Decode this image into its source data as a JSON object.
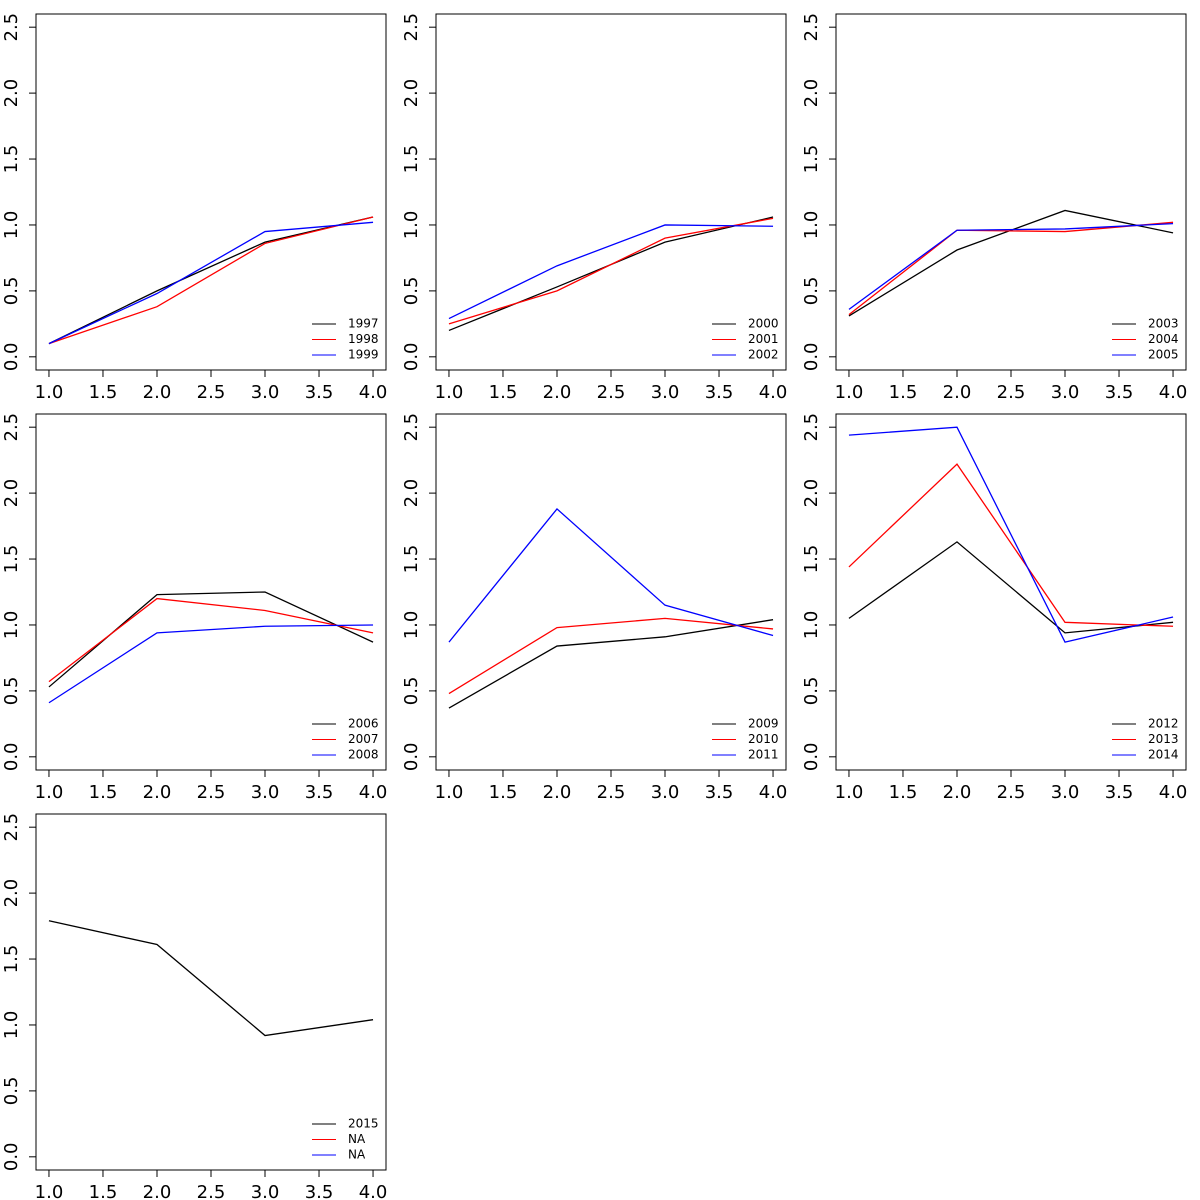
{
  "chart_data": [
    {
      "type": "line",
      "x": [
        1,
        2,
        3,
        4
      ],
      "xlim": [
        0.88,
        4.12
      ],
      "ylim": [
        -0.1,
        2.6
      ],
      "legend": "bottomright",
      "xticks": [
        {
          "value": 1,
          "label": "1.0"
        },
        {
          "value": 1.5,
          "label": "1.5"
        },
        {
          "value": 2,
          "label": "2.0"
        },
        {
          "value": 2.5,
          "label": "2.5"
        },
        {
          "value": 3,
          "label": "3.0"
        },
        {
          "value": 3.5,
          "label": "3.5"
        },
        {
          "value": 4,
          "label": "4.0"
        }
      ],
      "yticks": [
        {
          "value": 0,
          "label": "0.0"
        },
        {
          "value": 0.5,
          "label": "0.5"
        },
        {
          "value": 1,
          "label": "1.0"
        },
        {
          "value": 1.5,
          "label": "1.5"
        },
        {
          "value": 2,
          "label": "2.0"
        },
        {
          "value": 2.5,
          "label": "2.5"
        }
      ],
      "series": [
        {
          "name": "1997",
          "color": "#000000",
          "values": [
            0.1,
            0.5,
            0.87,
            1.06
          ]
        },
        {
          "name": "1998",
          "color": "#ff0000",
          "values": [
            0.1,
            0.38,
            0.86,
            1.06
          ]
        },
        {
          "name": "1999",
          "color": "#0000ff",
          "values": [
            0.1,
            0.48,
            0.95,
            1.02
          ]
        }
      ]
    },
    {
      "type": "line",
      "x": [
        1,
        2,
        3,
        4
      ],
      "xlim": [
        0.88,
        4.12
      ],
      "ylim": [
        -0.1,
        2.6
      ],
      "legend": "bottomright",
      "xticks": [
        {
          "value": 1,
          "label": "1.0"
        },
        {
          "value": 1.5,
          "label": "1.5"
        },
        {
          "value": 2,
          "label": "2.0"
        },
        {
          "value": 2.5,
          "label": "2.5"
        },
        {
          "value": 3,
          "label": "3.0"
        },
        {
          "value": 3.5,
          "label": "3.5"
        },
        {
          "value": 4,
          "label": "4.0"
        }
      ],
      "yticks": [
        {
          "value": 0,
          "label": "0.0"
        },
        {
          "value": 0.5,
          "label": "0.5"
        },
        {
          "value": 1,
          "label": "1.0"
        },
        {
          "value": 1.5,
          "label": "1.5"
        },
        {
          "value": 2,
          "label": "2.0"
        },
        {
          "value": 2.5,
          "label": "2.5"
        }
      ],
      "series": [
        {
          "name": "2000",
          "color": "#000000",
          "values": [
            0.2,
            0.53,
            0.87,
            1.06
          ]
        },
        {
          "name": "2001",
          "color": "#ff0000",
          "values": [
            0.25,
            0.5,
            0.9,
            1.05
          ]
        },
        {
          "name": "2002",
          "color": "#0000ff",
          "values": [
            0.29,
            0.69,
            1.0,
            0.99
          ]
        }
      ]
    },
    {
      "type": "line",
      "x": [
        1,
        2,
        3,
        4
      ],
      "xlim": [
        0.88,
        4.12
      ],
      "ylim": [
        -0.1,
        2.6
      ],
      "legend": "bottomright",
      "xticks": [
        {
          "value": 1,
          "label": "1.0"
        },
        {
          "value": 1.5,
          "label": "1.5"
        },
        {
          "value": 2,
          "label": "2.0"
        },
        {
          "value": 2.5,
          "label": "2.5"
        },
        {
          "value": 3,
          "label": "3.0"
        },
        {
          "value": 3.5,
          "label": "3.5"
        },
        {
          "value": 4,
          "label": "4.0"
        }
      ],
      "yticks": [
        {
          "value": 0,
          "label": "0.0"
        },
        {
          "value": 0.5,
          "label": "0.5"
        },
        {
          "value": 1,
          "label": "1.0"
        },
        {
          "value": 1.5,
          "label": "1.5"
        },
        {
          "value": 2,
          "label": "2.0"
        },
        {
          "value": 2.5,
          "label": "2.5"
        }
      ],
      "series": [
        {
          "name": "2003",
          "color": "#000000",
          "values": [
            0.31,
            0.81,
            1.11,
            0.94
          ]
        },
        {
          "name": "2004",
          "color": "#ff0000",
          "values": [
            0.32,
            0.96,
            0.95,
            1.02
          ]
        },
        {
          "name": "2005",
          "color": "#0000ff",
          "values": [
            0.36,
            0.96,
            0.97,
            1.01
          ]
        }
      ]
    },
    {
      "type": "line",
      "x": [
        1,
        2,
        3,
        4
      ],
      "xlim": [
        0.88,
        4.12
      ],
      "ylim": [
        -0.1,
        2.6
      ],
      "legend": "bottomright",
      "xticks": [
        {
          "value": 1,
          "label": "1.0"
        },
        {
          "value": 1.5,
          "label": "1.5"
        },
        {
          "value": 2,
          "label": "2.0"
        },
        {
          "value": 2.5,
          "label": "2.5"
        },
        {
          "value": 3,
          "label": "3.0"
        },
        {
          "value": 3.5,
          "label": "3.5"
        },
        {
          "value": 4,
          "label": "4.0"
        }
      ],
      "yticks": [
        {
          "value": 0,
          "label": "0.0"
        },
        {
          "value": 0.5,
          "label": "0.5"
        },
        {
          "value": 1,
          "label": "1.0"
        },
        {
          "value": 1.5,
          "label": "1.5"
        },
        {
          "value": 2,
          "label": "2.0"
        },
        {
          "value": 2.5,
          "label": "2.5"
        }
      ],
      "series": [
        {
          "name": "2006",
          "color": "#000000",
          "values": [
            0.53,
            1.23,
            1.25,
            0.87
          ]
        },
        {
          "name": "2007",
          "color": "#ff0000",
          "values": [
            0.57,
            1.2,
            1.11,
            0.94
          ]
        },
        {
          "name": "2008",
          "color": "#0000ff",
          "values": [
            0.41,
            0.94,
            0.99,
            1.0
          ]
        }
      ]
    },
    {
      "type": "line",
      "x": [
        1,
        2,
        3,
        4
      ],
      "xlim": [
        0.88,
        4.12
      ],
      "ylim": [
        -0.1,
        2.6
      ],
      "legend": "bottomright",
      "xticks": [
        {
          "value": 1,
          "label": "1.0"
        },
        {
          "value": 1.5,
          "label": "1.5"
        },
        {
          "value": 2,
          "label": "2.0"
        },
        {
          "value": 2.5,
          "label": "2.5"
        },
        {
          "value": 3,
          "label": "3.0"
        },
        {
          "value": 3.5,
          "label": "3.5"
        },
        {
          "value": 4,
          "label": "4.0"
        }
      ],
      "yticks": [
        {
          "value": 0,
          "label": "0.0"
        },
        {
          "value": 0.5,
          "label": "0.5"
        },
        {
          "value": 1,
          "label": "1.0"
        },
        {
          "value": 1.5,
          "label": "1.5"
        },
        {
          "value": 2,
          "label": "2.0"
        },
        {
          "value": 2.5,
          "label": "2.5"
        }
      ],
      "series": [
        {
          "name": "2009",
          "color": "#000000",
          "values": [
            0.37,
            0.84,
            0.91,
            1.04
          ]
        },
        {
          "name": "2010",
          "color": "#ff0000",
          "values": [
            0.48,
            0.98,
            1.05,
            0.97
          ]
        },
        {
          "name": "2011",
          "color": "#0000ff",
          "values": [
            0.87,
            1.88,
            1.15,
            0.92
          ]
        }
      ]
    },
    {
      "type": "line",
      "x": [
        1,
        2,
        3,
        4
      ],
      "xlim": [
        0.88,
        4.12
      ],
      "ylim": [
        -0.1,
        2.6
      ],
      "legend": "bottomright",
      "xticks": [
        {
          "value": 1,
          "label": "1.0"
        },
        {
          "value": 1.5,
          "label": "1.5"
        },
        {
          "value": 2,
          "label": "2.0"
        },
        {
          "value": 2.5,
          "label": "2.5"
        },
        {
          "value": 3,
          "label": "3.0"
        },
        {
          "value": 3.5,
          "label": "3.5"
        },
        {
          "value": 4,
          "label": "4.0"
        }
      ],
      "yticks": [
        {
          "value": 0,
          "label": "0.0"
        },
        {
          "value": 0.5,
          "label": "0.5"
        },
        {
          "value": 1,
          "label": "1.0"
        },
        {
          "value": 1.5,
          "label": "1.5"
        },
        {
          "value": 2,
          "label": "2.0"
        },
        {
          "value": 2.5,
          "label": "2.5"
        }
      ],
      "series": [
        {
          "name": "2012",
          "color": "#000000",
          "values": [
            1.05,
            1.63,
            0.94,
            1.02
          ]
        },
        {
          "name": "2013",
          "color": "#ff0000",
          "values": [
            1.44,
            2.22,
            1.02,
            0.99
          ]
        },
        {
          "name": "2014",
          "color": "#0000ff",
          "values": [
            2.44,
            2.5,
            0.87,
            1.06
          ]
        }
      ]
    },
    {
      "type": "line",
      "x": [
        1,
        2,
        3,
        4
      ],
      "xlim": [
        0.88,
        4.12
      ],
      "ylim": [
        -0.1,
        2.6
      ],
      "legend": "bottomright",
      "xticks": [
        {
          "value": 1,
          "label": "1.0"
        },
        {
          "value": 1.5,
          "label": "1.5"
        },
        {
          "value": 2,
          "label": "2.0"
        },
        {
          "value": 2.5,
          "label": "2.5"
        },
        {
          "value": 3,
          "label": "3.0"
        },
        {
          "value": 3.5,
          "label": "3.5"
        },
        {
          "value": 4,
          "label": "4.0"
        }
      ],
      "yticks": [
        {
          "value": 0,
          "label": "0.0"
        },
        {
          "value": 0.5,
          "label": "0.5"
        },
        {
          "value": 1,
          "label": "1.0"
        },
        {
          "value": 1.5,
          "label": "1.5"
        },
        {
          "value": 2,
          "label": "2.0"
        },
        {
          "value": 2.5,
          "label": "2.5"
        }
      ],
      "series": [
        {
          "name": "2015",
          "color": "#000000",
          "values": [
            1.79,
            1.61,
            0.92,
            1.04
          ]
        },
        {
          "name": "NA",
          "color": "#ff0000",
          "values": [
            null,
            null,
            null,
            null
          ]
        },
        {
          "name": "NA",
          "color": "#0000ff",
          "values": [
            null,
            null,
            null,
            null
          ]
        }
      ]
    }
  ]
}
